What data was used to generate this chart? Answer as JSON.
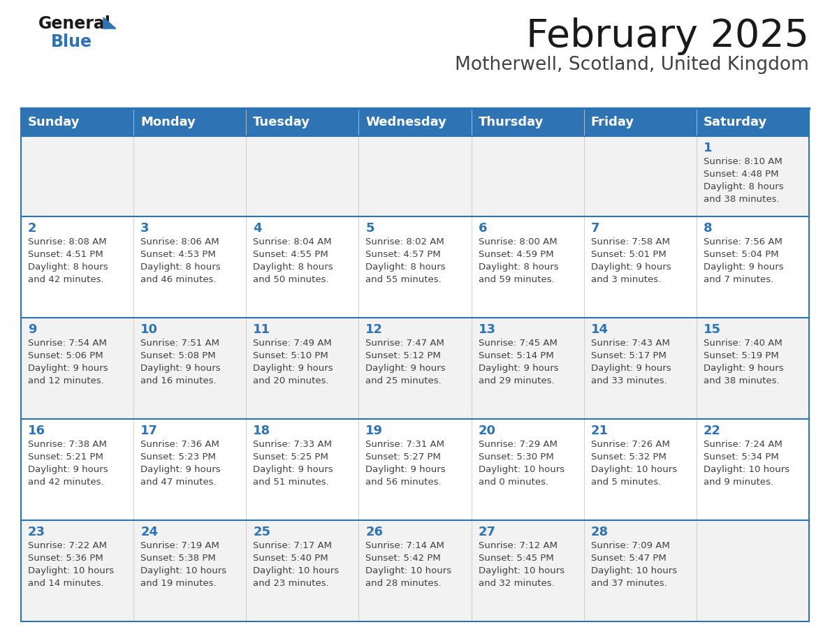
{
  "title": "February 2025",
  "subtitle": "Motherwell, Scotland, United Kingdom",
  "header_bg": "#2E74B5",
  "header_text_color": "#FFFFFF",
  "day_names": [
    "Sunday",
    "Monday",
    "Tuesday",
    "Wednesday",
    "Thursday",
    "Friday",
    "Saturday"
  ],
  "bg_color": "#FFFFFF",
  "cell_bg_week1": "#F2F2F2",
  "cell_bg_week2": "#FFFFFF",
  "cell_bg_week3": "#F2F2F2",
  "cell_bg_week4": "#FFFFFF",
  "cell_bg_week5": "#F2F2F2",
  "separator_color": "#2E74B5",
  "text_color": "#404040",
  "date_color": "#2E74B5",
  "logo_color1": "#1a1a1a",
  "logo_color2": "#2E74B5",
  "weeks": [
    {
      "bg": "#F2F2F2",
      "days": [
        {
          "date": null,
          "info": null
        },
        {
          "date": null,
          "info": null
        },
        {
          "date": null,
          "info": null
        },
        {
          "date": null,
          "info": null
        },
        {
          "date": null,
          "info": null
        },
        {
          "date": null,
          "info": null
        },
        {
          "date": "1",
          "info": "Sunrise: 8:10 AM\nSunset: 4:48 PM\nDaylight: 8 hours\nand 38 minutes."
        }
      ]
    },
    {
      "bg": "#FFFFFF",
      "days": [
        {
          "date": "2",
          "info": "Sunrise: 8:08 AM\nSunset: 4:51 PM\nDaylight: 8 hours\nand 42 minutes."
        },
        {
          "date": "3",
          "info": "Sunrise: 8:06 AM\nSunset: 4:53 PM\nDaylight: 8 hours\nand 46 minutes."
        },
        {
          "date": "4",
          "info": "Sunrise: 8:04 AM\nSunset: 4:55 PM\nDaylight: 8 hours\nand 50 minutes."
        },
        {
          "date": "5",
          "info": "Sunrise: 8:02 AM\nSunset: 4:57 PM\nDaylight: 8 hours\nand 55 minutes."
        },
        {
          "date": "6",
          "info": "Sunrise: 8:00 AM\nSunset: 4:59 PM\nDaylight: 8 hours\nand 59 minutes."
        },
        {
          "date": "7",
          "info": "Sunrise: 7:58 AM\nSunset: 5:01 PM\nDaylight: 9 hours\nand 3 minutes."
        },
        {
          "date": "8",
          "info": "Sunrise: 7:56 AM\nSunset: 5:04 PM\nDaylight: 9 hours\nand 7 minutes."
        }
      ]
    },
    {
      "bg": "#F2F2F2",
      "days": [
        {
          "date": "9",
          "info": "Sunrise: 7:54 AM\nSunset: 5:06 PM\nDaylight: 9 hours\nand 12 minutes."
        },
        {
          "date": "10",
          "info": "Sunrise: 7:51 AM\nSunset: 5:08 PM\nDaylight: 9 hours\nand 16 minutes."
        },
        {
          "date": "11",
          "info": "Sunrise: 7:49 AM\nSunset: 5:10 PM\nDaylight: 9 hours\nand 20 minutes."
        },
        {
          "date": "12",
          "info": "Sunrise: 7:47 AM\nSunset: 5:12 PM\nDaylight: 9 hours\nand 25 minutes."
        },
        {
          "date": "13",
          "info": "Sunrise: 7:45 AM\nSunset: 5:14 PM\nDaylight: 9 hours\nand 29 minutes."
        },
        {
          "date": "14",
          "info": "Sunrise: 7:43 AM\nSunset: 5:17 PM\nDaylight: 9 hours\nand 33 minutes."
        },
        {
          "date": "15",
          "info": "Sunrise: 7:40 AM\nSunset: 5:19 PM\nDaylight: 9 hours\nand 38 minutes."
        }
      ]
    },
    {
      "bg": "#FFFFFF",
      "days": [
        {
          "date": "16",
          "info": "Sunrise: 7:38 AM\nSunset: 5:21 PM\nDaylight: 9 hours\nand 42 minutes."
        },
        {
          "date": "17",
          "info": "Sunrise: 7:36 AM\nSunset: 5:23 PM\nDaylight: 9 hours\nand 47 minutes."
        },
        {
          "date": "18",
          "info": "Sunrise: 7:33 AM\nSunset: 5:25 PM\nDaylight: 9 hours\nand 51 minutes."
        },
        {
          "date": "19",
          "info": "Sunrise: 7:31 AM\nSunset: 5:27 PM\nDaylight: 9 hours\nand 56 minutes."
        },
        {
          "date": "20",
          "info": "Sunrise: 7:29 AM\nSunset: 5:30 PM\nDaylight: 10 hours\nand 0 minutes."
        },
        {
          "date": "21",
          "info": "Sunrise: 7:26 AM\nSunset: 5:32 PM\nDaylight: 10 hours\nand 5 minutes."
        },
        {
          "date": "22",
          "info": "Sunrise: 7:24 AM\nSunset: 5:34 PM\nDaylight: 10 hours\nand 9 minutes."
        }
      ]
    },
    {
      "bg": "#F2F2F2",
      "days": [
        {
          "date": "23",
          "info": "Sunrise: 7:22 AM\nSunset: 5:36 PM\nDaylight: 10 hours\nand 14 minutes."
        },
        {
          "date": "24",
          "info": "Sunrise: 7:19 AM\nSunset: 5:38 PM\nDaylight: 10 hours\nand 19 minutes."
        },
        {
          "date": "25",
          "info": "Sunrise: 7:17 AM\nSunset: 5:40 PM\nDaylight: 10 hours\nand 23 minutes."
        },
        {
          "date": "26",
          "info": "Sunrise: 7:14 AM\nSunset: 5:42 PM\nDaylight: 10 hours\nand 28 minutes."
        },
        {
          "date": "27",
          "info": "Sunrise: 7:12 AM\nSunset: 5:45 PM\nDaylight: 10 hours\nand 32 minutes."
        },
        {
          "date": "28",
          "info": "Sunrise: 7:09 AM\nSunset: 5:47 PM\nDaylight: 10 hours\nand 37 minutes."
        },
        {
          "date": null,
          "info": null
        }
      ]
    }
  ]
}
